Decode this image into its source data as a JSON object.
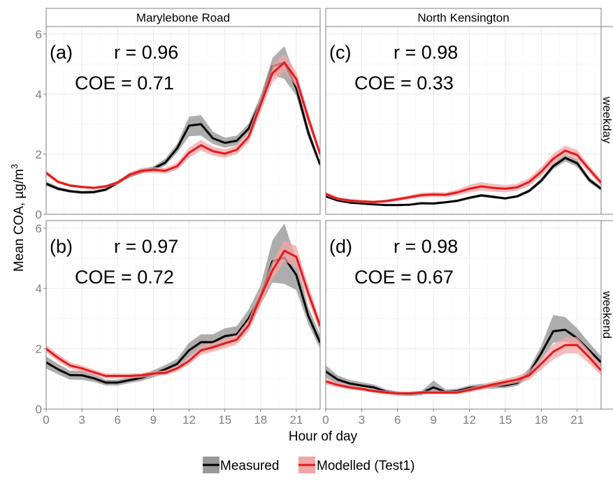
{
  "ylabel": "Mean COA,  µg/m",
  "ylabel_sup": "3",
  "xlabel": "Hour of day",
  "columns": [
    "Marylebone Road",
    "North Kensington"
  ],
  "rows": [
    "weekday",
    "weekend"
  ],
  "legend": {
    "measured": "Measured",
    "modelled": "Modelled (Test1)"
  },
  "colors": {
    "measured": "#000000",
    "measured_band": "#999999",
    "modelled": "#e41a1c",
    "modelled_band": "#f4a6a6",
    "strip": "#ffffff",
    "grid": "#ebebeb"
  },
  "chart_data": {
    "type": "line",
    "x_ticks": [
      0,
      3,
      6,
      9,
      12,
      15,
      18,
      21
    ],
    "y_ticks": [
      0,
      2,
      4,
      6
    ],
    "xlim": [
      0,
      23
    ],
    "ylim": [
      0,
      6.25
    ],
    "panels": [
      {
        "id": "mr-weekday",
        "column": "Marylebone Road",
        "row": "weekday",
        "label": "(a)",
        "r": "r = 0.96",
        "coe": "COE = 0.71",
        "series": [
          {
            "name": "Measured",
            "x": [
              0,
              1,
              2,
              3,
              4,
              5,
              6,
              7,
              8,
              9,
              10,
              11,
              12,
              13,
              14,
              15,
              16,
              17,
              18,
              19,
              20,
              21,
              22,
              23
            ],
            "y": [
              1.02,
              0.85,
              0.77,
              0.73,
              0.74,
              0.82,
              1.05,
              1.28,
              1.42,
              1.52,
              1.72,
              2.2,
              2.95,
              3.0,
              2.53,
              2.38,
              2.45,
              2.85,
              3.75,
              4.93,
              5.05,
              4.2,
              2.72,
              1.65
            ],
            "lo": [
              0.95,
              0.8,
              0.72,
              0.68,
              0.69,
              0.77,
              0.99,
              1.22,
              1.35,
              1.44,
              1.62,
              2.05,
              2.6,
              2.62,
              2.34,
              2.22,
              2.3,
              2.7,
              3.55,
              4.65,
              4.5,
              3.95,
              2.55,
              1.55
            ],
            "hi": [
              1.1,
              0.92,
              0.82,
              0.78,
              0.8,
              0.88,
              1.11,
              1.34,
              1.5,
              1.6,
              1.85,
              2.35,
              3.25,
              3.3,
              2.75,
              2.55,
              2.62,
              3.02,
              3.95,
              5.2,
              5.6,
              4.5,
              2.9,
              1.75
            ]
          },
          {
            "name": "Modelled (Test1)",
            "x": [
              0,
              1,
              2,
              3,
              4,
              5,
              6,
              7,
              8,
              9,
              10,
              11,
              12,
              13,
              14,
              15,
              16,
              17,
              18,
              19,
              20,
              21,
              22,
              23
            ],
            "y": [
              1.38,
              1.08,
              0.96,
              0.91,
              0.88,
              0.93,
              1.06,
              1.32,
              1.45,
              1.48,
              1.45,
              1.6,
              2.05,
              2.3,
              2.1,
              2.02,
              2.15,
              2.58,
              3.65,
              4.7,
              5.05,
              4.5,
              3.2,
              2.0
            ],
            "lo": [
              1.3,
              1.02,
              0.91,
              0.86,
              0.83,
              0.88,
              1.0,
              1.24,
              1.36,
              1.38,
              1.35,
              1.48,
              1.88,
              2.12,
              1.95,
              1.88,
              2.0,
              2.4,
              3.4,
              4.4,
              4.75,
              4.25,
              3.0,
              1.88
            ],
            "hi": [
              1.46,
              1.14,
              1.01,
              0.96,
              0.93,
              0.98,
              1.12,
              1.4,
              1.54,
              1.58,
              1.55,
              1.72,
              2.22,
              2.48,
              2.25,
              2.16,
              2.3,
              2.76,
              3.9,
              5.0,
              5.35,
              4.75,
              3.4,
              2.12
            ]
          }
        ]
      },
      {
        "id": "nk-weekday",
        "column": "North Kensington",
        "row": "weekday",
        "label": "(c)",
        "r": "r = 0.98",
        "coe": "COE = 0.33",
        "series": [
          {
            "name": "Measured",
            "x": [
              0,
              1,
              2,
              3,
              4,
              5,
              6,
              7,
              8,
              9,
              10,
              11,
              12,
              13,
              14,
              15,
              16,
              17,
              18,
              19,
              20,
              21,
              22,
              23
            ],
            "y": [
              0.6,
              0.46,
              0.39,
              0.36,
              0.33,
              0.31,
              0.31,
              0.32,
              0.37,
              0.36,
              0.4,
              0.45,
              0.55,
              0.63,
              0.58,
              0.53,
              0.6,
              0.78,
              1.12,
              1.6,
              1.88,
              1.7,
              1.15,
              0.85
            ],
            "lo": [
              0.56,
              0.43,
              0.36,
              0.33,
              0.3,
              0.28,
              0.28,
              0.29,
              0.33,
              0.32,
              0.36,
              0.41,
              0.5,
              0.58,
              0.53,
              0.49,
              0.55,
              0.72,
              1.04,
              1.5,
              1.76,
              1.58,
              1.06,
              0.78
            ],
            "hi": [
              0.64,
              0.49,
              0.42,
              0.39,
              0.36,
              0.34,
              0.34,
              0.35,
              0.41,
              0.4,
              0.44,
              0.49,
              0.6,
              0.68,
              0.63,
              0.57,
              0.65,
              0.84,
              1.2,
              1.7,
              2.0,
              1.82,
              1.24,
              0.92
            ]
          },
          {
            "name": "Modelled (Test1)",
            "x": [
              0,
              1,
              2,
              3,
              4,
              5,
              6,
              7,
              8,
              9,
              10,
              11,
              12,
              13,
              14,
              15,
              16,
              17,
              18,
              19,
              20,
              21,
              22,
              23
            ],
            "y": [
              0.68,
              0.52,
              0.46,
              0.43,
              0.41,
              0.44,
              0.5,
              0.57,
              0.64,
              0.66,
              0.65,
              0.73,
              0.85,
              0.93,
              0.88,
              0.85,
              0.9,
              1.08,
              1.42,
              1.85,
              2.12,
              1.98,
              1.5,
              1.05
            ],
            "lo": [
              0.62,
              0.47,
              0.41,
              0.38,
              0.36,
              0.39,
              0.44,
              0.5,
              0.56,
              0.58,
              0.57,
              0.63,
              0.72,
              0.79,
              0.75,
              0.73,
              0.78,
              0.94,
              1.27,
              1.68,
              1.95,
              1.82,
              1.37,
              0.95
            ],
            "hi": [
              0.74,
              0.57,
              0.51,
              0.48,
              0.46,
              0.49,
              0.56,
              0.64,
              0.72,
              0.74,
              0.73,
              0.83,
              0.98,
              1.07,
              1.01,
              0.97,
              1.02,
              1.22,
              1.57,
              2.02,
              2.29,
              2.14,
              1.63,
              1.15
            ]
          }
        ]
      },
      {
        "id": "mr-weekend",
        "column": "Marylebone Road",
        "row": "weekend",
        "label": "(b)",
        "r": "r = 0.97",
        "coe": "COE = 0.72",
        "series": [
          {
            "name": "Measured",
            "x": [
              0,
              1,
              2,
              3,
              4,
              5,
              6,
              7,
              8,
              9,
              10,
              11,
              12,
              13,
              14,
              15,
              16,
              17,
              18,
              19,
              20,
              21,
              22,
              23
            ],
            "y": [
              1.55,
              1.32,
              1.13,
              1.12,
              1.02,
              0.88,
              0.88,
              0.96,
              1.04,
              1.17,
              1.32,
              1.5,
              1.95,
              2.22,
              2.22,
              2.42,
              2.48,
              3.0,
              3.75,
              4.9,
              5.02,
              4.45,
              3.1,
              2.2
            ],
            "lo": [
              1.35,
              1.15,
              0.98,
              0.97,
              0.9,
              0.78,
              0.78,
              0.86,
              0.93,
              1.05,
              1.18,
              1.34,
              1.72,
              1.98,
              1.98,
              2.18,
              2.24,
              2.72,
              3.45,
              4.2,
              4.15,
              3.95,
              2.82,
              2.0
            ],
            "hi": [
              1.75,
              1.5,
              1.28,
              1.27,
              1.15,
              0.98,
              0.98,
              1.06,
              1.15,
              1.29,
              1.46,
              1.67,
              2.2,
              2.48,
              2.48,
              2.68,
              2.75,
              3.3,
              4.1,
              5.6,
              6.15,
              4.95,
              3.4,
              2.45
            ]
          },
          {
            "name": "Modelled (Test1)",
            "x": [
              0,
              1,
              2,
              3,
              4,
              5,
              6,
              7,
              8,
              9,
              10,
              11,
              12,
              13,
              14,
              15,
              16,
              17,
              18,
              19,
              20,
              21,
              22,
              23
            ],
            "y": [
              2.0,
              1.7,
              1.45,
              1.35,
              1.22,
              1.1,
              1.1,
              1.1,
              1.12,
              1.18,
              1.2,
              1.35,
              1.6,
              1.95,
              2.05,
              2.18,
              2.3,
              2.78,
              3.72,
              4.6,
              5.25,
              5.05,
              3.85,
              2.75
            ],
            "lo": [
              1.88,
              1.58,
              1.34,
              1.25,
              1.13,
              1.02,
              1.02,
              1.02,
              1.04,
              1.1,
              1.12,
              1.25,
              1.48,
              1.8,
              1.9,
              2.02,
              2.14,
              2.58,
              3.45,
              4.3,
              4.9,
              4.7,
              3.58,
              2.55
            ],
            "hi": [
              2.12,
              1.82,
              1.56,
              1.45,
              1.31,
              1.18,
              1.18,
              1.18,
              1.2,
              1.26,
              1.28,
              1.45,
              1.72,
              2.1,
              2.2,
              2.34,
              2.46,
              2.98,
              3.99,
              4.9,
              5.6,
              5.4,
              4.12,
              2.95
            ]
          }
        ]
      },
      {
        "id": "nk-weekend",
        "column": "North Kensington",
        "row": "weekend",
        "label": "(d)",
        "r": "r = 0.98",
        "coe": "COE = 0.67",
        "series": [
          {
            "name": "Measured",
            "x": [
              0,
              1,
              2,
              3,
              4,
              5,
              6,
              7,
              8,
              9,
              10,
              11,
              12,
              13,
              14,
              15,
              16,
              17,
              18,
              19,
              20,
              21,
              22,
              23
            ],
            "y": [
              1.25,
              0.98,
              0.85,
              0.78,
              0.72,
              0.58,
              0.52,
              0.5,
              0.53,
              0.72,
              0.57,
              0.6,
              0.7,
              0.75,
              0.77,
              0.79,
              0.87,
              1.2,
              1.85,
              2.58,
              2.63,
              2.35,
              1.95,
              1.55
            ],
            "lo": [
              1.05,
              0.84,
              0.73,
              0.67,
              0.62,
              0.5,
              0.45,
              0.43,
              0.46,
              0.55,
              0.49,
              0.52,
              0.61,
              0.66,
              0.68,
              0.7,
              0.77,
              1.05,
              1.6,
              2.2,
              2.25,
              2.05,
              1.72,
              1.38
            ],
            "hi": [
              1.45,
              1.12,
              0.97,
              0.89,
              0.82,
              0.66,
              0.59,
              0.57,
              0.6,
              0.95,
              0.65,
              0.68,
              0.79,
              0.84,
              0.86,
              0.88,
              0.97,
              1.35,
              2.1,
              3.12,
              3.05,
              2.68,
              2.2,
              1.75
            ]
          },
          {
            "name": "Modelled (Test1)",
            "x": [
              0,
              1,
              2,
              3,
              4,
              5,
              6,
              7,
              8,
              9,
              10,
              11,
              12,
              13,
              14,
              15,
              16,
              17,
              18,
              19,
              20,
              21,
              22,
              23
            ],
            "y": [
              0.92,
              0.8,
              0.72,
              0.67,
              0.6,
              0.55,
              0.52,
              0.52,
              0.55,
              0.55,
              0.55,
              0.55,
              0.63,
              0.72,
              0.82,
              0.9,
              0.98,
              1.12,
              1.5,
              1.9,
              2.12,
              2.12,
              1.72,
              1.28
            ],
            "lo": [
              0.82,
              0.72,
              0.65,
              0.6,
              0.54,
              0.49,
              0.46,
              0.46,
              0.49,
              0.49,
              0.49,
              0.49,
              0.56,
              0.63,
              0.72,
              0.79,
              0.86,
              0.97,
              1.3,
              1.65,
              1.85,
              1.85,
              1.5,
              1.12
            ],
            "hi": [
              1.02,
              0.88,
              0.79,
              0.74,
              0.66,
              0.61,
              0.58,
              0.58,
              0.61,
              0.61,
              0.61,
              0.61,
              0.7,
              0.81,
              0.92,
              1.01,
              1.1,
              1.27,
              1.7,
              2.15,
              2.39,
              2.39,
              1.94,
              1.44
            ]
          }
        ]
      }
    ]
  }
}
